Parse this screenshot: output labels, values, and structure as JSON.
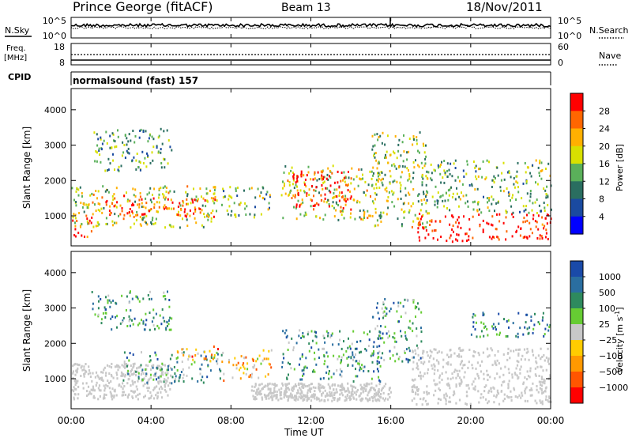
{
  "header": {
    "station": "Prince George (fitACF)",
    "beam": "Beam 13",
    "date": "18/Nov/2011"
  },
  "sky_panel": {
    "left_label": "N.Sky",
    "right_label": "N.Search",
    "left_ticks": [
      "10^5",
      "10^0"
    ],
    "right_ticks": [
      "10^5",
      "10^0"
    ]
  },
  "freq_panel": {
    "left_label_line1": "Freq.",
    "left_label_line2": "[MHz]",
    "right_label": "Nave",
    "left_ticks": [
      "18",
      "8"
    ],
    "right_ticks": [
      "60",
      "0"
    ]
  },
  "cpid": {
    "label": "CPID",
    "value": "normalsound (fast) 157"
  },
  "x_axis": {
    "title": "Time UT",
    "ticks": [
      "00:00",
      "04:00",
      "08:00",
      "12:00",
      "16:00",
      "20:00",
      "00:00"
    ]
  },
  "colors": {
    "frame": "#000000",
    "ground_scatter": "#c8c8c8"
  },
  "chart_data": [
    {
      "type": "heatmap",
      "name": "power",
      "ylabel": "Slant Range [km]",
      "ylim": [
        150,
        4600
      ],
      "yticks": [
        1000,
        2000,
        3000,
        4000
      ],
      "xlim": [
        0,
        24
      ],
      "xunit": "hours UT",
      "colorbar": {
        "title": "Power [dB]",
        "ticks": [
          "28",
          "24",
          "20",
          "16",
          "12",
          "8",
          "4"
        ],
        "colors": [
          "#ff0000",
          "#ff6600",
          "#ffb000",
          "#d8e000",
          "#5ab05a",
          "#2a6e60",
          "#1a4aa0",
          "#0000ff"
        ]
      },
      "scatter_regions": [
        {
          "t0": 0.0,
          "t1": 7.4,
          "r0": 700,
          "r1": 1900,
          "level": 0.55
        },
        {
          "t0": 0.0,
          "t1": 1.0,
          "r0": 350,
          "r1": 1000,
          "level": 0.95
        },
        {
          "t0": 1.5,
          "t1": 7.2,
          "r0": 1000,
          "r1": 1600,
          "level": 0.88
        },
        {
          "t0": 7.5,
          "t1": 10.0,
          "r0": 950,
          "r1": 1850,
          "level": 0.45
        },
        {
          "t0": 10.5,
          "t1": 15.5,
          "r0": 900,
          "r1": 2450,
          "level": 0.55
        },
        {
          "t0": 11.0,
          "t1": 14.0,
          "r0": 1200,
          "r1": 2300,
          "level": 0.9
        },
        {
          "t0": 15.0,
          "t1": 17.8,
          "r0": 700,
          "r1": 3400,
          "level": 0.5
        },
        {
          "t0": 17.0,
          "t1": 24.0,
          "r0": 300,
          "r1": 1100,
          "level": 0.97
        },
        {
          "t0": 17.5,
          "t1": 24.0,
          "r0": 1100,
          "r1": 2600,
          "level": 0.45
        },
        {
          "t0": 1.0,
          "t1": 5.0,
          "r0": 2300,
          "r1": 3500,
          "level": 0.4
        }
      ]
    },
    {
      "type": "heatmap",
      "name": "velocity",
      "ylabel": "Slant Range [km]",
      "ylim": [
        150,
        4600
      ],
      "yticks": [
        1000,
        2000,
        3000,
        4000
      ],
      "xlim": [
        0,
        24
      ],
      "xunit": "hours UT",
      "colorbar": {
        "title": "Velocity [m s",
        "title_superscript": "-1",
        "title_end": "]",
        "ticks": [
          "1000",
          "500",
          "100",
          "25",
          "−25",
          "−100",
          "−500",
          "−1000"
        ],
        "colors": [
          "#1a4aa8",
          "#2a6ea0",
          "#2e8a5e",
          "#66cc33",
          "#c8c8c8",
          "#ffcc00",
          "#ff9900",
          "#ff5500",
          "#ff0000"
        ]
      },
      "ground_scatter_regions": [
        {
          "t0": 0.0,
          "t1": 5.0,
          "r0": 450,
          "r1": 1450
        },
        {
          "t0": 17.0,
          "t1": 24.0,
          "r0": 300,
          "r1": 1900
        },
        {
          "t0": 9.0,
          "t1": 16.0,
          "r0": 400,
          "r1": 900
        }
      ],
      "scatter_regions": [
        {
          "t0": 2.5,
          "t1": 7.5,
          "r0": 900,
          "r1": 1800,
          "level": 0.7
        },
        {
          "t0": 5.0,
          "t1": 7.5,
          "r0": 1500,
          "r1": 1950,
          "level": 0.3
        },
        {
          "t0": 7.5,
          "t1": 10.0,
          "r0": 950,
          "r1": 1850,
          "level": 0.35
        },
        {
          "t0": 10.5,
          "t1": 15.5,
          "r0": 950,
          "r1": 2400,
          "level": 0.72
        },
        {
          "t0": 15.0,
          "t1": 17.5,
          "r0": 1500,
          "r1": 3300,
          "level": 0.7
        },
        {
          "t0": 20.0,
          "t1": 24.0,
          "r0": 2200,
          "r1": 2900,
          "level": 0.78
        },
        {
          "t0": 1.0,
          "t1": 5.0,
          "r0": 2400,
          "r1": 3500,
          "level": 0.7
        }
      ]
    }
  ]
}
